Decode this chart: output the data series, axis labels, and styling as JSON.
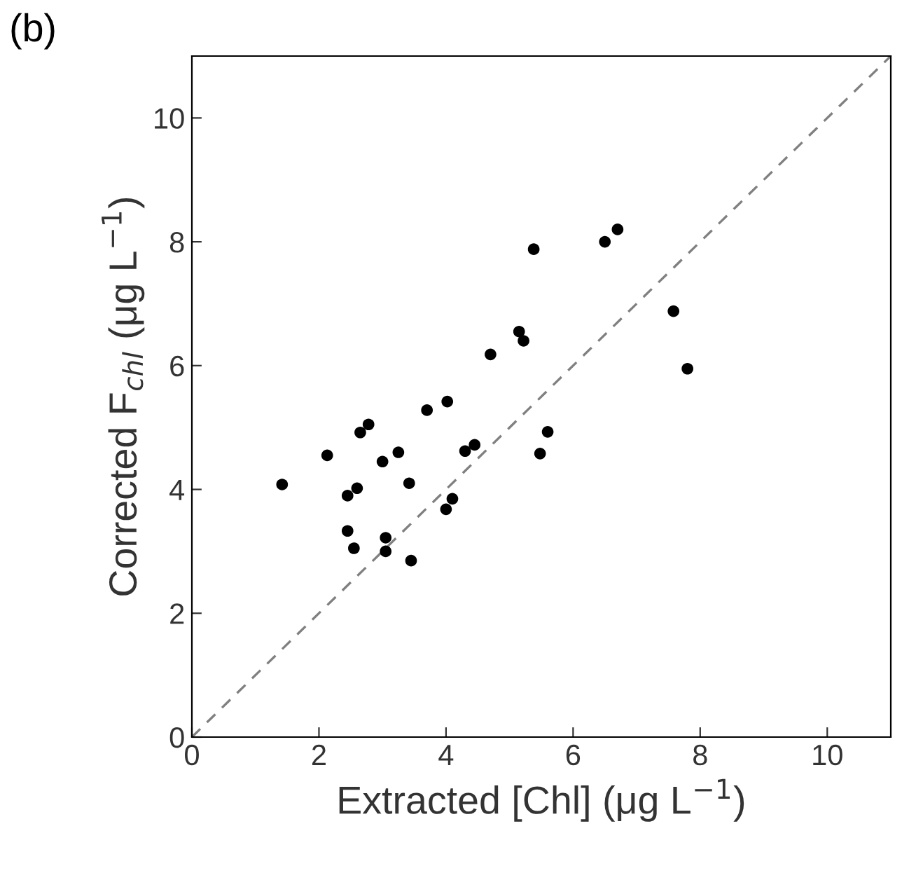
{
  "chart_data": {
    "type": "scatter",
    "title": "(b)",
    "xlabel": "Extracted [Chl] (μg L$^{−1}$)",
    "ylabel": "Corrected F$_{chl}$ (μg L$^{−1}$)",
    "xlim": [
      0,
      11
    ],
    "ylim": [
      0,
      11
    ],
    "xticks": [
      0,
      2,
      4,
      6,
      8,
      10
    ],
    "yticks": [
      0,
      2,
      4,
      6,
      8,
      10
    ],
    "grid": false,
    "series": [
      {
        "marker": "circle",
        "color": "#000000",
        "x": [
          1.42,
          2.13,
          2.45,
          2.45,
          2.55,
          2.6,
          2.65,
          2.78,
          3.0,
          3.05,
          3.05,
          3.25,
          3.42,
          3.45,
          3.7,
          4.0,
          4.1,
          4.02,
          4.3,
          4.45,
          4.7,
          5.15,
          5.22,
          5.38,
          5.48,
          5.6,
          6.5,
          6.7,
          7.58,
          7.8
        ],
        "values": [
          4.08,
          4.55,
          3.9,
          3.33,
          3.05,
          4.02,
          4.92,
          5.05,
          4.45,
          3.22,
          3.0,
          4.6,
          4.1,
          2.85,
          5.28,
          3.68,
          3.85,
          5.42,
          4.62,
          4.72,
          6.18,
          6.55,
          6.4,
          7.88,
          4.58,
          4.93,
          8.0,
          8.2,
          6.88,
          5.95
        ]
      },
      {
        "type": "line",
        "color": "#808080",
        "line_style": "dashed",
        "marker": "none",
        "x": [
          0,
          11
        ],
        "values": [
          0,
          11
        ]
      }
    ]
  }
}
